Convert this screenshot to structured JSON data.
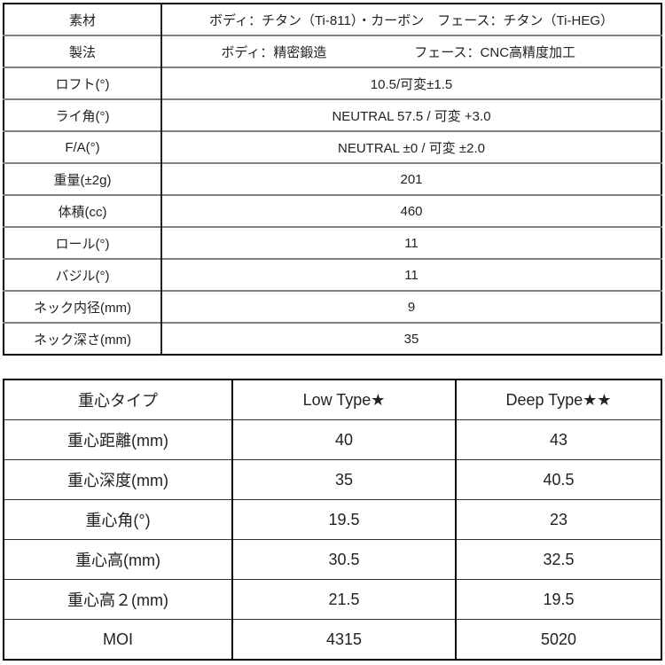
{
  "spec": {
    "rows": [
      {
        "label": "素材",
        "value": "ボディ：チタン（Ti-811）・カーボン　フェース：チタン（Ti-HEG）"
      },
      {
        "label": "製法",
        "value_left": "ボディ：精密鍛造",
        "value_right": "フェース：CNC高精度加工"
      },
      {
        "label": "ロフト(°)",
        "value": "10.5/可変±1.5"
      },
      {
        "label": "ライ角(°)",
        "value": "NEUTRAL 57.5 / 可変 +3.0"
      },
      {
        "label": "F/A(°)",
        "value": "NEUTRAL ±0 / 可変 ±2.0"
      },
      {
        "label": "重量(±2g)",
        "value": "201"
      },
      {
        "label": "体積(cc)",
        "value": "460"
      },
      {
        "label": "ロール(°)",
        "value": "11"
      },
      {
        "label": "バジル(°)",
        "value": "11"
      },
      {
        "label": "ネック内径(mm)",
        "value": "9"
      },
      {
        "label": "ネック深さ(mm)",
        "value": "35"
      }
    ]
  },
  "cg": {
    "header": [
      "重心タイプ",
      "Low Type★",
      "Deep Type★★"
    ],
    "rows": [
      [
        "重心距離(mm)",
        "40",
        "43"
      ],
      [
        "重心深度(mm)",
        "35",
        "40.5"
      ],
      [
        "重心角(°)",
        "19.5",
        "23"
      ],
      [
        "重心高(mm)",
        "30.5",
        "32.5"
      ],
      [
        "重心高２(mm)",
        "21.5",
        "19.5"
      ],
      [
        "MOI",
        "4315",
        "5020"
      ]
    ]
  }
}
